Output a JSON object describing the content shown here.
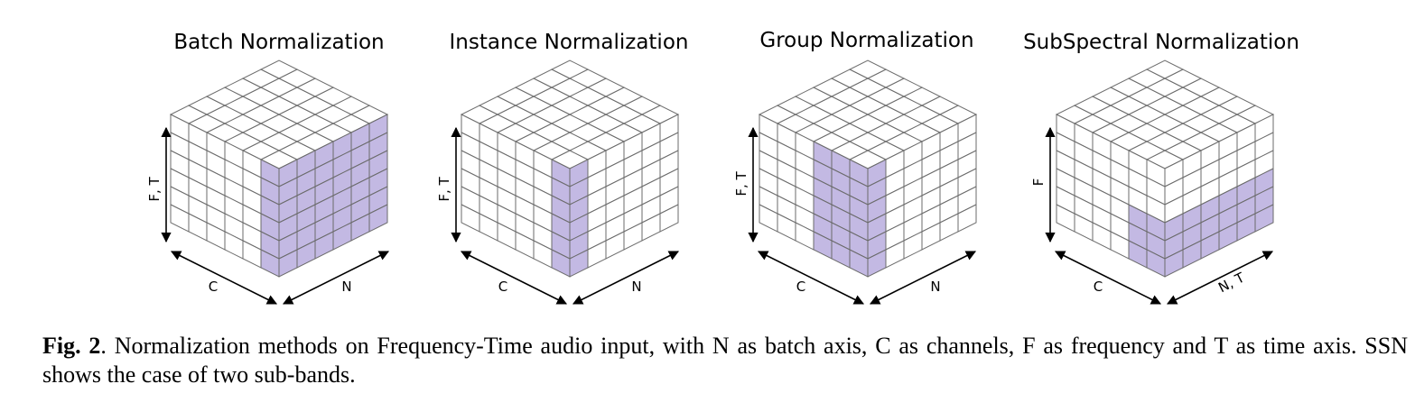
{
  "panels": [
    {
      "title": "Batch Normalization",
      "vertical_label": "F, T",
      "left_label": "C",
      "right_label": "N"
    },
    {
      "title": "Instance Normalization",
      "vertical_label": "F, T",
      "left_label": "C",
      "right_label": "N"
    },
    {
      "title": "Group Normalization",
      "vertical_label": "F, T",
      "left_label": "C",
      "right_label": "N"
    },
    {
      "title": "SubSpectral Normalization",
      "vertical_label": "F",
      "left_label": "C",
      "right_label": "N, T"
    }
  ],
  "caption": {
    "label": "Fig. 2",
    "text": ". Normalization methods on Frequency-Time audio input, with N as batch axis, C as channels, F as frequency and T as time axis. SSN shows the case of two sub-bands."
  },
  "colors": {
    "highlight": "#c3b9e3",
    "grid_line": "#6b6b6b",
    "face": "#ffffff"
  }
}
